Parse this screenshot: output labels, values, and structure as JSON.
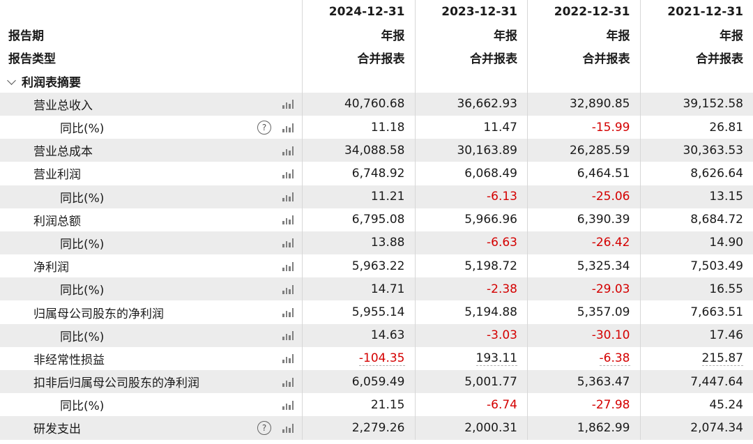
{
  "header": {
    "dates": [
      "2024-12-31",
      "2023-12-31",
      "2022-12-31",
      "2021-12-31"
    ],
    "period_label": "报告期",
    "period_values": [
      "年报",
      "年报",
      "年报",
      "年报"
    ],
    "type_label": "报告类型",
    "type_values": [
      "合并报表",
      "合并报表",
      "合并报表",
      "合并报表"
    ]
  },
  "section": {
    "title": "利润表摘要"
  },
  "rows": [
    {
      "label": "营业总收入",
      "values": [
        "40,760.68",
        "36,662.93",
        "32,890.85",
        "39,152.58"
      ]
    },
    {
      "label": "同比(%)",
      "values": [
        "11.18",
        "11.47",
        "-15.99",
        "26.81"
      ]
    },
    {
      "label": "营业总成本",
      "values": [
        "34,088.58",
        "30,163.89",
        "26,285.59",
        "30,363.53"
      ]
    },
    {
      "label": "营业利润",
      "values": [
        "6,748.92",
        "6,068.49",
        "6,464.51",
        "8,626.64"
      ]
    },
    {
      "label": "同比(%)",
      "values": [
        "11.21",
        "-6.13",
        "-25.06",
        "13.15"
      ]
    },
    {
      "label": "利润总额",
      "values": [
        "6,795.08",
        "5,966.96",
        "6,390.39",
        "8,684.72"
      ]
    },
    {
      "label": "同比(%)",
      "values": [
        "13.88",
        "-6.63",
        "-26.42",
        "14.90"
      ]
    },
    {
      "label": "净利润",
      "values": [
        "5,963.22",
        "5,198.72",
        "5,325.34",
        "7,503.49"
      ]
    },
    {
      "label": "同比(%)",
      "values": [
        "14.71",
        "-2.38",
        "-29.03",
        "16.55"
      ]
    },
    {
      "label": "归属母公司股东的净利润",
      "values": [
        "5,955.14",
        "5,194.88",
        "5,357.09",
        "7,663.51"
      ]
    },
    {
      "label": "同比(%)",
      "values": [
        "14.63",
        "-3.03",
        "-30.10",
        "17.46"
      ]
    },
    {
      "label": "非经常性损益",
      "values": [
        "-104.35",
        "193.11",
        "-6.38",
        "215.87"
      ]
    },
    {
      "label": "扣非后归属母公司股东的净利润",
      "values": [
        "6,059.49",
        "5,001.77",
        "5,363.47",
        "7,447.64"
      ]
    },
    {
      "label": "同比(%)",
      "values": [
        "21.15",
        "-6.74",
        "-27.98",
        "45.24"
      ]
    },
    {
      "label": "研发支出",
      "values": [
        "2,279.26",
        "2,000.31",
        "1,862.99",
        "2,074.34"
      ]
    }
  ],
  "icons": {
    "chart": "bar-chart-icon",
    "help": "help-circle-icon",
    "collapse": "chevron-down-icon"
  },
  "colors": {
    "negative": "#d40000",
    "stripe": "#ececec"
  }
}
